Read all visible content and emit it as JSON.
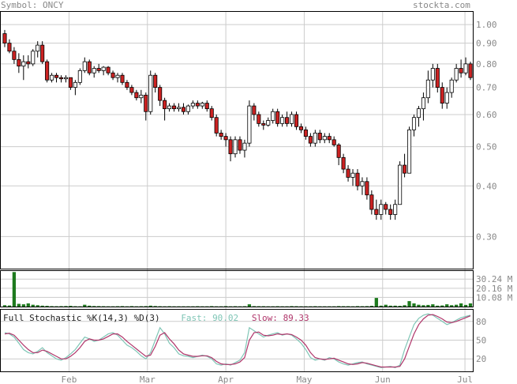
{
  "header": {
    "symbol_label": "Symbol: ONCY",
    "site": "stockta.com"
  },
  "stochastic": {
    "title": "Full Stochastic %K(14,3) %D(3)",
    "fast_label": "Fast:",
    "fast_value": "90.02",
    "slow_label": "Slow:",
    "slow_value": "89.33",
    "colors": {
      "fast": "#7fc6b6",
      "slow": "#b0356a"
    }
  },
  "chart_data": [
    {
      "type": "candlestick",
      "scale": "log",
      "ylim": [
        0.25,
        1.08
      ],
      "y_ticks": [
        "1.00",
        "0.90",
        "0.80",
        "0.70",
        "0.60",
        "0.50",
        "0.40",
        "0.30"
      ],
      "x_ticks": [
        "Feb",
        "Mar",
        "Apr",
        "May",
        "Jun",
        "Jul"
      ],
      "colors": {
        "up": "#ffffff",
        "down": "#cc2222",
        "outline": "#000000"
      },
      "candles": [
        [
          0.95,
          0.97,
          0.88,
          0.9
        ],
        [
          0.9,
          0.92,
          0.85,
          0.86
        ],
        [
          0.86,
          0.88,
          0.8,
          0.82
        ],
        [
          0.82,
          0.85,
          0.76,
          0.79
        ],
        [
          0.79,
          0.84,
          0.73,
          0.81
        ],
        [
          0.81,
          0.84,
          0.78,
          0.8
        ],
        [
          0.8,
          0.87,
          0.79,
          0.86
        ],
        [
          0.86,
          0.91,
          0.83,
          0.89
        ],
        [
          0.89,
          0.91,
          0.8,
          0.81
        ],
        [
          0.81,
          0.82,
          0.72,
          0.73
        ],
        [
          0.73,
          0.76,
          0.72,
          0.75
        ],
        [
          0.75,
          0.76,
          0.72,
          0.74
        ],
        [
          0.74,
          0.75,
          0.72,
          0.735
        ],
        [
          0.735,
          0.75,
          0.72,
          0.74
        ],
        [
          0.74,
          0.74,
          0.69,
          0.7
        ],
        [
          0.7,
          0.73,
          0.67,
          0.72
        ],
        [
          0.72,
          0.78,
          0.71,
          0.77
        ],
        [
          0.77,
          0.83,
          0.76,
          0.81
        ],
        [
          0.81,
          0.82,
          0.75,
          0.76
        ],
        [
          0.76,
          0.79,
          0.74,
          0.78
        ],
        [
          0.78,
          0.8,
          0.76,
          0.77
        ],
        [
          0.77,
          0.79,
          0.75,
          0.785
        ],
        [
          0.785,
          0.79,
          0.75,
          0.76
        ],
        [
          0.76,
          0.77,
          0.73,
          0.74
        ],
        [
          0.74,
          0.76,
          0.72,
          0.75
        ],
        [
          0.75,
          0.76,
          0.71,
          0.72
        ],
        [
          0.72,
          0.73,
          0.69,
          0.7
        ],
        [
          0.7,
          0.71,
          0.67,
          0.68
        ],
        [
          0.68,
          0.69,
          0.65,
          0.66
        ],
        [
          0.66,
          0.69,
          0.64,
          0.67
        ],
        [
          0.67,
          0.68,
          0.58,
          0.61
        ],
        [
          0.61,
          0.77,
          0.6,
          0.75
        ],
        [
          0.75,
          0.76,
          0.68,
          0.7
        ],
        [
          0.7,
          0.71,
          0.63,
          0.65
        ],
        [
          0.65,
          0.66,
          0.58,
          0.62
        ],
        [
          0.62,
          0.64,
          0.61,
          0.63
        ],
        [
          0.63,
          0.64,
          0.61,
          0.62
        ],
        [
          0.62,
          0.64,
          0.61,
          0.625
        ],
        [
          0.625,
          0.64,
          0.6,
          0.61
        ],
        [
          0.61,
          0.635,
          0.6,
          0.63
        ],
        [
          0.63,
          0.65,
          0.62,
          0.64
        ],
        [
          0.64,
          0.65,
          0.62,
          0.63
        ],
        [
          0.63,
          0.645,
          0.62,
          0.64
        ],
        [
          0.64,
          0.65,
          0.61,
          0.62
        ],
        [
          0.62,
          0.63,
          0.58,
          0.59
        ],
        [
          0.59,
          0.6,
          0.53,
          0.54
        ],
        [
          0.54,
          0.55,
          0.52,
          0.53
        ],
        [
          0.53,
          0.54,
          0.5,
          0.52
        ],
        [
          0.52,
          0.53,
          0.46,
          0.48
        ],
        [
          0.48,
          0.53,
          0.47,
          0.52
        ],
        [
          0.52,
          0.53,
          0.48,
          0.49
        ],
        [
          0.49,
          0.52,
          0.47,
          0.51
        ],
        [
          0.51,
          0.65,
          0.5,
          0.63
        ],
        [
          0.63,
          0.64,
          0.58,
          0.6
        ],
        [
          0.6,
          0.61,
          0.56,
          0.57
        ],
        [
          0.57,
          0.58,
          0.55,
          0.565
        ],
        [
          0.565,
          0.59,
          0.56,
          0.58
        ],
        [
          0.58,
          0.62,
          0.57,
          0.61
        ],
        [
          0.61,
          0.62,
          0.56,
          0.57
        ],
        [
          0.57,
          0.6,
          0.56,
          0.59
        ],
        [
          0.59,
          0.61,
          0.56,
          0.57
        ],
        [
          0.57,
          0.61,
          0.56,
          0.6
        ],
        [
          0.6,
          0.61,
          0.55,
          0.56
        ],
        [
          0.56,
          0.57,
          0.54,
          0.55
        ],
        [
          0.55,
          0.56,
          0.52,
          0.53
        ],
        [
          0.53,
          0.54,
          0.5,
          0.51
        ],
        [
          0.51,
          0.55,
          0.5,
          0.54
        ],
        [
          0.54,
          0.55,
          0.51,
          0.52
        ],
        [
          0.52,
          0.54,
          0.51,
          0.53
        ],
        [
          0.53,
          0.54,
          0.51,
          0.52
        ],
        [
          0.52,
          0.53,
          0.5,
          0.505
        ],
        [
          0.505,
          0.51,
          0.45,
          0.47
        ],
        [
          0.47,
          0.48,
          0.43,
          0.44
        ],
        [
          0.44,
          0.45,
          0.41,
          0.42
        ],
        [
          0.42,
          0.44,
          0.4,
          0.43
        ],
        [
          0.43,
          0.44,
          0.39,
          0.4
        ],
        [
          0.4,
          0.42,
          0.38,
          0.41
        ],
        [
          0.41,
          0.42,
          0.37,
          0.38
        ],
        [
          0.38,
          0.39,
          0.34,
          0.35
        ],
        [
          0.35,
          0.37,
          0.33,
          0.34
        ],
        [
          0.34,
          0.37,
          0.33,
          0.36
        ],
        [
          0.36,
          0.365,
          0.34,
          0.35
        ],
        [
          0.35,
          0.36,
          0.33,
          0.34
        ],
        [
          0.34,
          0.37,
          0.33,
          0.36
        ],
        [
          0.36,
          0.46,
          0.36,
          0.45
        ],
        [
          0.45,
          0.48,
          0.42,
          0.43
        ],
        [
          0.43,
          0.56,
          0.43,
          0.55
        ],
        [
          0.55,
          0.6,
          0.53,
          0.59
        ],
        [
          0.59,
          0.63,
          0.56,
          0.62
        ],
        [
          0.62,
          0.68,
          0.58,
          0.66
        ],
        [
          0.66,
          0.77,
          0.64,
          0.73
        ],
        [
          0.73,
          0.8,
          0.7,
          0.78
        ],
        [
          0.78,
          0.8,
          0.68,
          0.7
        ],
        [
          0.7,
          0.72,
          0.62,
          0.64
        ],
        [
          0.64,
          0.7,
          0.62,
          0.68
        ],
        [
          0.68,
          0.74,
          0.66,
          0.73
        ],
        [
          0.73,
          0.8,
          0.72,
          0.78
        ],
        [
          0.78,
          0.82,
          0.74,
          0.76
        ],
        [
          0.76,
          0.83,
          0.75,
          0.8
        ],
        [
          0.8,
          0.81,
          0.73,
          0.74
        ]
      ]
    },
    {
      "type": "bar",
      "y_ticks": [
        "30.24 M",
        "20.16 M",
        "10.08 M"
      ],
      "ylim": [
        0,
        40
      ],
      "color": "#1e7a1e",
      "values": [
        1.5,
        1.2,
        38,
        3,
        2.5,
        3.5,
        2,
        1.5,
        1,
        0.8,
        0.5,
        0.4,
        0.5,
        0.6,
        0.8,
        0.4,
        0.3,
        2,
        1,
        0.6,
        0.5,
        0.4,
        0.3,
        0.3,
        0.4,
        0.5,
        0.3,
        0.5,
        0.3,
        0.4,
        0.5,
        1,
        0.6,
        0.4,
        0.3,
        0.4,
        0.3,
        0.3,
        0.3,
        0.3,
        0.3,
        0.4,
        0.3,
        0.3,
        0.5,
        0.3,
        0.3,
        0.5,
        0.3,
        0.4,
        0.3,
        0.4,
        2.5,
        0.5,
        0.4,
        0.4,
        0.3,
        0.3,
        0.4,
        0.3,
        0.3,
        0.5,
        0.4,
        0.3,
        0.3,
        0.3,
        0.4,
        0.3,
        0.3,
        0.3,
        0.3,
        0.5,
        0.4,
        0.4,
        0.3,
        0.5,
        0.4,
        0.5,
        0.8,
        9.5,
        1,
        2,
        1,
        1,
        0.8,
        1.5,
        6,
        3.5,
        2,
        1.5,
        1.8,
        2.5,
        1,
        1.2,
        2.5,
        1.5,
        2,
        3.5,
        1.8,
        3.5
      ]
    },
    {
      "type": "line",
      "ylim": [
        0,
        100
      ],
      "y_ticks": [
        "80",
        "50",
        "20"
      ],
      "series": [
        {
          "name": "Fast",
          "values": [
            62,
            60,
            55,
            45,
            35,
            30,
            28,
            32,
            38,
            30,
            25,
            20,
            18,
            22,
            28,
            35,
            45,
            55,
            52,
            48,
            50,
            55,
            60,
            62,
            58,
            50,
            42,
            38,
            32,
            25,
            20,
            30,
            50,
            70,
            60,
            45,
            38,
            28,
            25,
            24,
            22,
            24,
            26,
            24,
            20,
            12,
            10,
            12,
            10,
            14,
            18,
            30,
            70,
            65,
            60,
            55,
            58,
            60,
            62,
            58,
            60,
            58,
            52,
            45,
            35,
            22,
            18,
            20,
            18,
            22,
            20,
            15,
            12,
            10,
            12,
            14,
            15,
            12,
            10,
            8,
            6,
            7,
            8,
            6,
            10,
            35,
            55,
            75,
            85,
            90,
            92,
            90,
            85,
            80,
            75,
            78,
            82,
            86,
            88,
            90
          ]
        },
        {
          "name": "Slow",
          "values": [
            60,
            61,
            58,
            50,
            42,
            35,
            30,
            30,
            34,
            32,
            28,
            24,
            20,
            20,
            24,
            30,
            38,
            48,
            52,
            50,
            50,
            52,
            56,
            60,
            60,
            55,
            48,
            42,
            36,
            30,
            24,
            26,
            40,
            58,
            62,
            52,
            44,
            34,
            28,
            26,
            24,
            24,
            25,
            25,
            22,
            16,
            12,
            11,
            11,
            12,
            15,
            22,
            50,
            62,
            63,
            58,
            57,
            58,
            60,
            59,
            60,
            59,
            55,
            50,
            42,
            30,
            22,
            20,
            19,
            20,
            21,
            18,
            15,
            12,
            11,
            12,
            14,
            13,
            11,
            9,
            7,
            7,
            7,
            7,
            8,
            20,
            40,
            60,
            75,
            84,
            90,
            91,
            88,
            84,
            79,
            78,
            80,
            83,
            86,
            89
          ]
        }
      ]
    }
  ]
}
